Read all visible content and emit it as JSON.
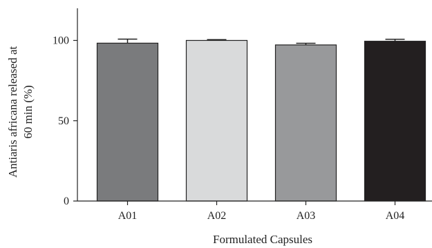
{
  "chart_data": {
    "type": "bar",
    "categories": [
      "A01",
      "A02",
      "A03",
      "A04"
    ],
    "values": [
      98.3,
      100.0,
      97.2,
      99.5
    ],
    "errors": [
      2.5,
      0.5,
      1.0,
      1.2
    ],
    "colors": [
      "#7a7b7d",
      "#d9dadb",
      "#98999b",
      "#231f20"
    ],
    "title": "",
    "xlabel": "Formulated Capsules",
    "ylabel_lines": [
      "Antiaris africana released at",
      "60 min (%)"
    ],
    "ylim": [
      0,
      120
    ],
    "yticks": [
      0,
      50,
      100
    ],
    "grid": false,
    "legend": "none"
  }
}
